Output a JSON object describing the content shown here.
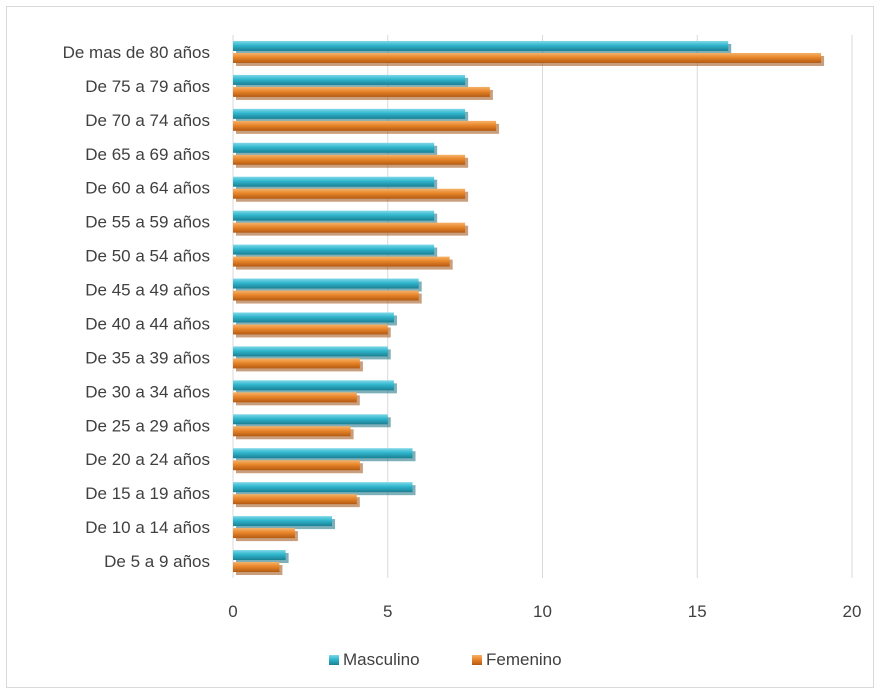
{
  "chart_data": {
    "type": "bar",
    "orientation": "horizontal",
    "categories": [
      "De mas de 80 años",
      "De 75 a 79 años",
      "De 70 a 74 años",
      "De 65 a 69 años",
      "De 60 a 64 años",
      "De 55 a 59 años",
      "De 50 a 54 años",
      "De 45 a 49 años",
      "De 40 a 44 años",
      "De 35 a 39 años",
      "De 30 a 34 años",
      "De 25 a 29 años",
      "De 20 a 24 años",
      "De 15 a 19 años",
      "De 10 a 14 años",
      "De 5 a 9 años"
    ],
    "series": [
      {
        "name": "Masculino",
        "color": "#2fb5cc",
        "values": [
          16.0,
          7.5,
          7.5,
          6.5,
          6.5,
          6.5,
          6.5,
          6.0,
          5.2,
          5.0,
          5.2,
          5.0,
          5.8,
          5.8,
          3.2,
          1.7
        ]
      },
      {
        "name": "Femenino",
        "color": "#e8852a",
        "values": [
          19.0,
          8.3,
          8.5,
          7.5,
          7.5,
          7.5,
          7.0,
          6.0,
          5.0,
          4.1,
          4.0,
          3.8,
          4.1,
          4.0,
          2.0,
          1.5
        ]
      }
    ],
    "xlim": [
      0,
      20
    ],
    "ticks": [
      "0",
      "5",
      "10",
      "15",
      "20"
    ],
    "grid": "vertical",
    "legend": "bottom",
    "title": "",
    "xlabel": "",
    "ylabel": ""
  }
}
